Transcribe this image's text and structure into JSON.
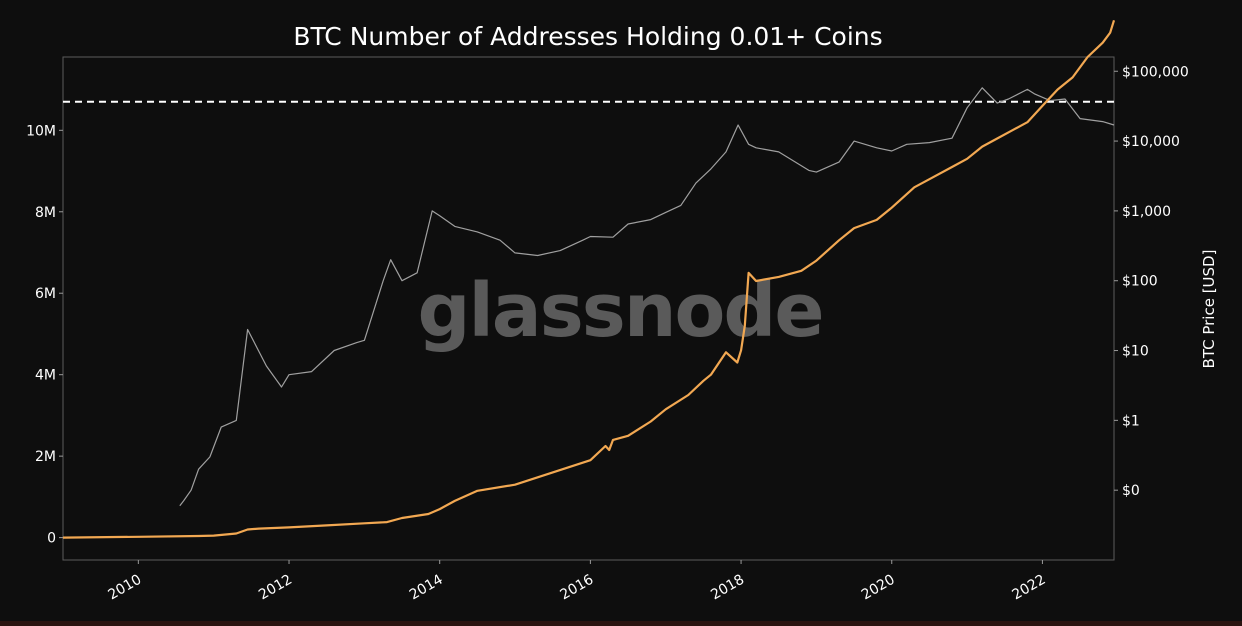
{
  "chart_data": {
    "type": "line",
    "title": "BTC Number of Addresses Holding 0.01+ Coins",
    "watermark": "glassnode",
    "y_left": {
      "range": [
        -550000,
        11800000
      ],
      "ticks": [
        0,
        2000000,
        4000000,
        6000000,
        8000000,
        10000000
      ],
      "tick_labels": [
        "0",
        "2M",
        "4M",
        "6M",
        "8M",
        "10M"
      ]
    },
    "y_right": {
      "label": "BTC Price [USD]",
      "scale": "log",
      "range": [
        0.01,
        160000
      ],
      "ticks": [
        0.1,
        1,
        10,
        100,
        1000,
        10000,
        100000
      ],
      "tick_labels": [
        "$0",
        "$1",
        "$10",
        "$100",
        "$1,000",
        "$10,000",
        "$100,000"
      ]
    },
    "x_axis": {
      "range": [
        2009.0,
        2022.95
      ],
      "ticks": [
        2010,
        2012,
        2014,
        2016,
        2018,
        2020,
        2022
      ],
      "tick_labels": [
        "2010",
        "2012",
        "2014",
        "2016",
        "2018",
        "2020",
        "2022"
      ]
    },
    "reference_line": {
      "style": "dashed",
      "color": "#ffffff",
      "value": 10700000
    },
    "grid": false,
    "series": [
      {
        "axis": "left",
        "color": "#f2a852",
        "x": [
          2009.0,
          2010.0,
          2010.8,
          2011.0,
          2011.3,
          2011.45,
          2011.6,
          2012.0,
          2012.5,
          2013.0,
          2013.3,
          2013.5,
          2013.85,
          2014.0,
          2014.2,
          2014.5,
          2015.0,
          2015.5,
          2016.0,
          2016.2,
          2016.25,
          2016.3,
          2016.5,
          2016.8,
          2017.0,
          2017.3,
          2017.5,
          2017.6,
          2017.8,
          2017.95,
          2018.0,
          2018.05,
          2018.1,
          2018.2,
          2018.5,
          2018.8,
          2019.0,
          2019.3,
          2019.5,
          2019.8,
          2020.0,
          2020.3,
          2020.5,
          2020.8,
          2021.0,
          2021.2,
          2021.4,
          2021.6,
          2021.8,
          2022.0,
          2022.2,
          2022.4,
          2022.6,
          2022.8,
          2022.9,
          2022.95
        ],
        "values": [
          0,
          20000,
          40000,
          50000,
          100000,
          200000,
          220000,
          250000,
          300000,
          350000,
          380000,
          480000,
          580000,
          700000,
          900000,
          1150000,
          1300000,
          1600000,
          1900000,
          2250000,
          2150000,
          2400000,
          2500000,
          2850000,
          3150000,
          3500000,
          3850000,
          4000000,
          4550000,
          4300000,
          4600000,
          5200000,
          6500000,
          6300000,
          6400000,
          6550000,
          6800000,
          7300000,
          7600000,
          7800000,
          8100000,
          8600000,
          8800000,
          9100000,
          9300000,
          9600000,
          9800000,
          10000000,
          10200000,
          10600000,
          11000000,
          11300000,
          11800000,
          12150000,
          12400000,
          12700000
        ]
      },
      {
        "axis": "right",
        "color": "#a0a0a0",
        "x": [
          2010.55,
          2010.6,
          2010.7,
          2010.8,
          2010.95,
          2011.1,
          2011.3,
          2011.45,
          2011.7,
          2011.9,
          2012.0,
          2012.3,
          2012.6,
          2012.9,
          2013.0,
          2013.25,
          2013.35,
          2013.5,
          2013.7,
          2013.9,
          2014.0,
          2014.2,
          2014.5,
          2014.8,
          2015.0,
          2015.3,
          2015.6,
          2015.9,
          2016.0,
          2016.3,
          2016.5,
          2016.8,
          2017.0,
          2017.2,
          2017.4,
          2017.6,
          2017.8,
          2017.96,
          2018.1,
          2018.2,
          2018.5,
          2018.9,
          2019.0,
          2019.3,
          2019.5,
          2019.8,
          2020.0,
          2020.2,
          2020.5,
          2020.8,
          2021.0,
          2021.2,
          2021.4,
          2021.55,
          2021.8,
          2021.9,
          2022.1,
          2022.3,
          2022.5,
          2022.8,
          2022.95
        ],
        "values": [
          0.06,
          0.07,
          0.1,
          0.2,
          0.3,
          0.8,
          1.0,
          20.0,
          6.0,
          3.0,
          4.5,
          5.0,
          10.0,
          13.0,
          14.0,
          100.0,
          200.0,
          100.0,
          130.0,
          1000.0,
          850.0,
          600.0,
          500.0,
          380.0,
          250.0,
          230.0,
          270.0,
          380.0,
          430.0,
          420.0,
          650.0,
          750.0,
          950.0,
          1200.0,
          2500.0,
          4000.0,
          7000.0,
          17000.0,
          9000.0,
          8000.0,
          7000.0,
          3800.0,
          3600.0,
          5000.0,
          10000.0,
          8000.0,
          7200.0,
          9000.0,
          9500.0,
          11000.0,
          30000.0,
          58000.0,
          35000.0,
          40000.0,
          55000.0,
          47000.0,
          38000.0,
          40000.0,
          21000.0,
          19000.0,
          17000.0
        ]
      }
    ]
  }
}
